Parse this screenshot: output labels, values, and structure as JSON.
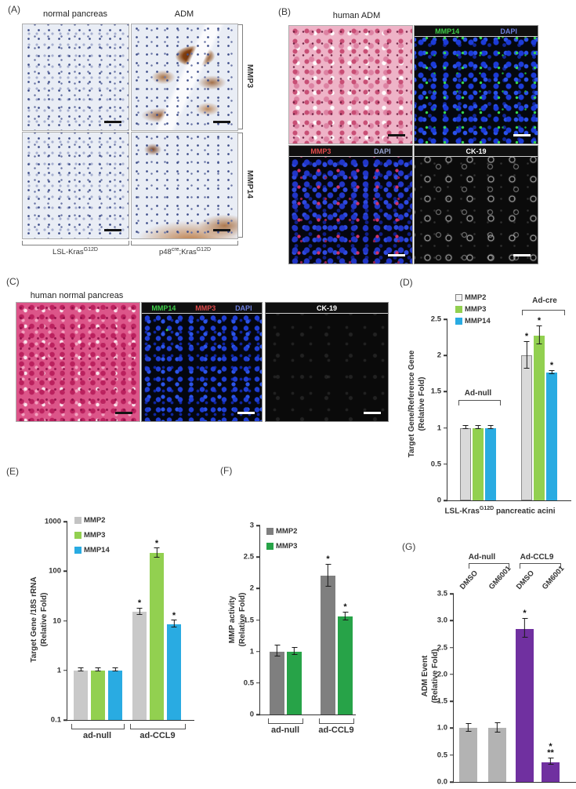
{
  "panelA": {
    "label": "(A)",
    "col1": "normal pancreas",
    "col2": "ADM",
    "row1": "MMP3",
    "row2": "MMP14",
    "geno1_base": "LSL-Kras",
    "geno1_sup": "G12D",
    "geno2_p1": "p48",
    "geno2_s1": "cre",
    "geno2_p2": ";Kras",
    "geno2_s2": "G12D"
  },
  "panelB": {
    "label": "(B)",
    "title": "human ADM",
    "mmp14": "MMP14",
    "dapi": "DAPI",
    "mmp3": "MMP3",
    "ck19": "CK-19"
  },
  "panelC": {
    "label": "(C)",
    "title": "human normal pancreas",
    "mmp14": "MMP14",
    "mmp3": "MMP3",
    "dapi": "DAPI",
    "ck19": "CK-19"
  },
  "panelD": {
    "label": "(D)"
  },
  "panelE": {
    "label": "(E)"
  },
  "panelF": {
    "label": "(F)"
  },
  "panelG": {
    "label": "(G)"
  },
  "chart_data": [
    {
      "id": "D",
      "type": "bar",
      "scale": "linear",
      "ylim": [
        0,
        2.5
      ],
      "ytick_values": [
        0,
        0.5,
        1,
        1.5,
        2,
        2.5
      ],
      "ytick_labels": [
        "0",
        "0.5",
        "1",
        "1.5",
        "2",
        "2.5"
      ],
      "ylabel1": "Target Gene/Reference Gene",
      "ylabel2": "(Relative Fold)",
      "xlabel_base": "LSL-Kras",
      "xlabel_sup": "G12D",
      "xlabel_rest": " pancreatic acini",
      "grid": false,
      "legend_position": "top-left-inside",
      "legend": [
        {
          "name": "MMP2",
          "color": "#f2f2f2",
          "border": "#808080"
        },
        {
          "name": "MMP3",
          "color": "#92d050"
        },
        {
          "name": "MMP14",
          "color": "#29abe2"
        }
      ],
      "series": [
        {
          "name": "MMP2",
          "color": "#d9d9d9",
          "border": "#8c8c8c"
        },
        {
          "name": "MMP3",
          "color": "#92d050"
        },
        {
          "name": "MMP14",
          "color": "#29abe2"
        }
      ],
      "groups": [
        {
          "label": "Ad-null",
          "values": [
            1.0,
            1.0,
            1.0
          ],
          "errors": [
            0.02,
            0.02,
            0.02
          ],
          "sig": [
            "",
            "",
            ""
          ]
        },
        {
          "label": "Ad-cre",
          "values": [
            2.0,
            2.27,
            1.76
          ],
          "errors": [
            0.18,
            0.12,
            0.02
          ],
          "sig": [
            "*",
            "*",
            "*"
          ]
        }
      ]
    },
    {
      "id": "E",
      "type": "bar",
      "scale": "log",
      "ylim": [
        0.1,
        1000
      ],
      "ytick_values": [
        0.1,
        1,
        10,
        100,
        1000
      ],
      "ytick_labels": [
        "0.1",
        "1",
        "10",
        "100",
        "1000"
      ],
      "ylabel1": "Target Gene /18S rRNA",
      "ylabel2": "(Relative Fold)",
      "grid": false,
      "legend_position": "top-left-inside",
      "legend": [
        {
          "name": "MMP2",
          "color": "#c3c3c3"
        },
        {
          "name": "MMP3",
          "color": "#92d050"
        },
        {
          "name": "MMP14",
          "color": "#29abe2"
        }
      ],
      "series": [
        {
          "name": "MMP2",
          "color": "#c9c9c9"
        },
        {
          "name": "MMP3",
          "color": "#92d050"
        },
        {
          "name": "MMP14",
          "color": "#29abe2"
        }
      ],
      "groups": [
        {
          "label": "ad-null",
          "values": [
            1.0,
            1.0,
            1.0
          ],
          "errors": [
            0.05,
            0.05,
            0.05
          ],
          "sig": [
            "",
            "",
            ""
          ]
        },
        {
          "label": "ad-CCL9",
          "values": [
            15,
            230,
            8.5
          ],
          "errors": [
            1.8,
            45,
            1.2
          ],
          "sig": [
            "*",
            "*",
            "*"
          ]
        }
      ]
    },
    {
      "id": "F",
      "type": "bar",
      "scale": "linear",
      "ylim": [
        0,
        3
      ],
      "ytick_values": [
        0,
        0.5,
        1,
        1.5,
        2,
        2.5,
        3
      ],
      "ytick_labels": [
        "0",
        "0.5",
        "1",
        "1.5",
        "2",
        "2.5",
        "3"
      ],
      "ylabel1": "MMP activity",
      "ylabel2": "(Relative Fold)",
      "grid": false,
      "legend_position": "top-left-inside",
      "legend": [
        {
          "name": "MMP2",
          "color": "#7f7f7f"
        },
        {
          "name": "MMP3",
          "color": "#27a348"
        }
      ],
      "series": [
        {
          "name": "MMP2",
          "color": "#7f7f7f"
        },
        {
          "name": "MMP3",
          "color": "#27a348"
        }
      ],
      "groups": [
        {
          "label": "ad-null",
          "values": [
            1.0,
            1.0
          ],
          "errors": [
            0.08,
            0.05
          ],
          "sig": [
            "",
            ""
          ]
        },
        {
          "label": "ad-CCL9",
          "values": [
            2.2,
            1.55
          ],
          "errors": [
            0.17,
            0.06
          ],
          "sig": [
            "*",
            "*"
          ]
        }
      ]
    },
    {
      "id": "G",
      "type": "bar",
      "scale": "linear",
      "ylim": [
        0,
        3.5
      ],
      "ytick_values": [
        0,
        0.5,
        1,
        1.5,
        2,
        2.5,
        3,
        3.5
      ],
      "ytick_labels": [
        "0.0",
        "0.5",
        "1.0",
        "1.5",
        "2.0",
        "2.5",
        "3.0",
        "3.5"
      ],
      "ylabel1": "ADM Event",
      "ylabel2": "(Relative Fold)",
      "grid": false,
      "legend": [],
      "groups": [
        {
          "label": "Ad-null",
          "treatments": [
            "DMSO",
            "GM6001"
          ],
          "values": [
            1.0,
            1.0
          ],
          "errors": [
            0.07,
            0.08
          ],
          "colors": [
            "#b3b3b3",
            "#b3b3b3"
          ],
          "sig": [
            "",
            ""
          ]
        },
        {
          "label": "Ad-CCL9",
          "treatments": [
            "DMSO",
            "GM6001"
          ],
          "values": [
            2.85,
            0.37
          ],
          "errors": [
            0.17,
            0.05
          ],
          "colors": [
            "#7030a0",
            "#7030a0"
          ],
          "sig": [
            "*",
            "*\n**"
          ]
        }
      ]
    }
  ]
}
